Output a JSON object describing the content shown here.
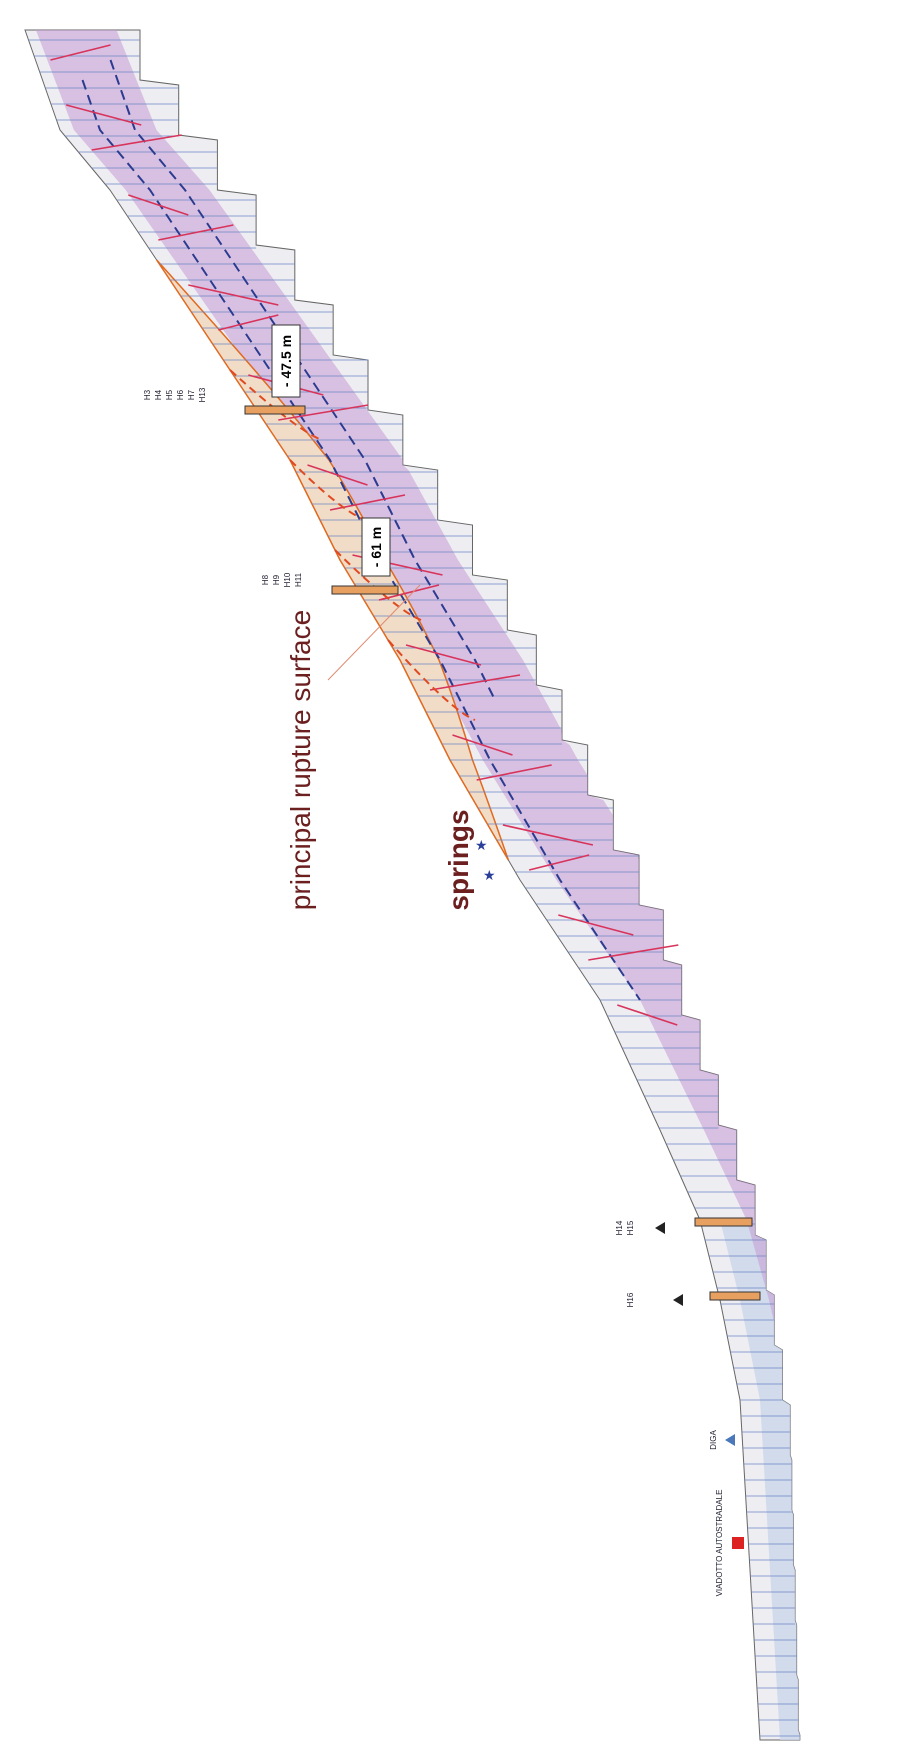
{
  "annotations": {
    "rupture": "principal rupture surface",
    "springs": "springs"
  },
  "depths": [
    {
      "label": "- 47.5 m"
    },
    {
      "label": "- 61 m"
    }
  ],
  "borehole_groups": [
    {
      "ids": [
        "H3",
        "H4",
        "H5",
        "H6",
        "H7",
        "H13"
      ]
    },
    {
      "ids": [
        "H8",
        "H9",
        "H10",
        "H11"
      ]
    },
    {
      "ids": [
        "H14",
        "H15"
      ]
    },
    {
      "ids": [
        "H16"
      ]
    }
  ],
  "structures": [
    {
      "label": "DIGA"
    },
    {
      "label": "VIADOTTO AUTOSTRADALE"
    }
  ]
}
